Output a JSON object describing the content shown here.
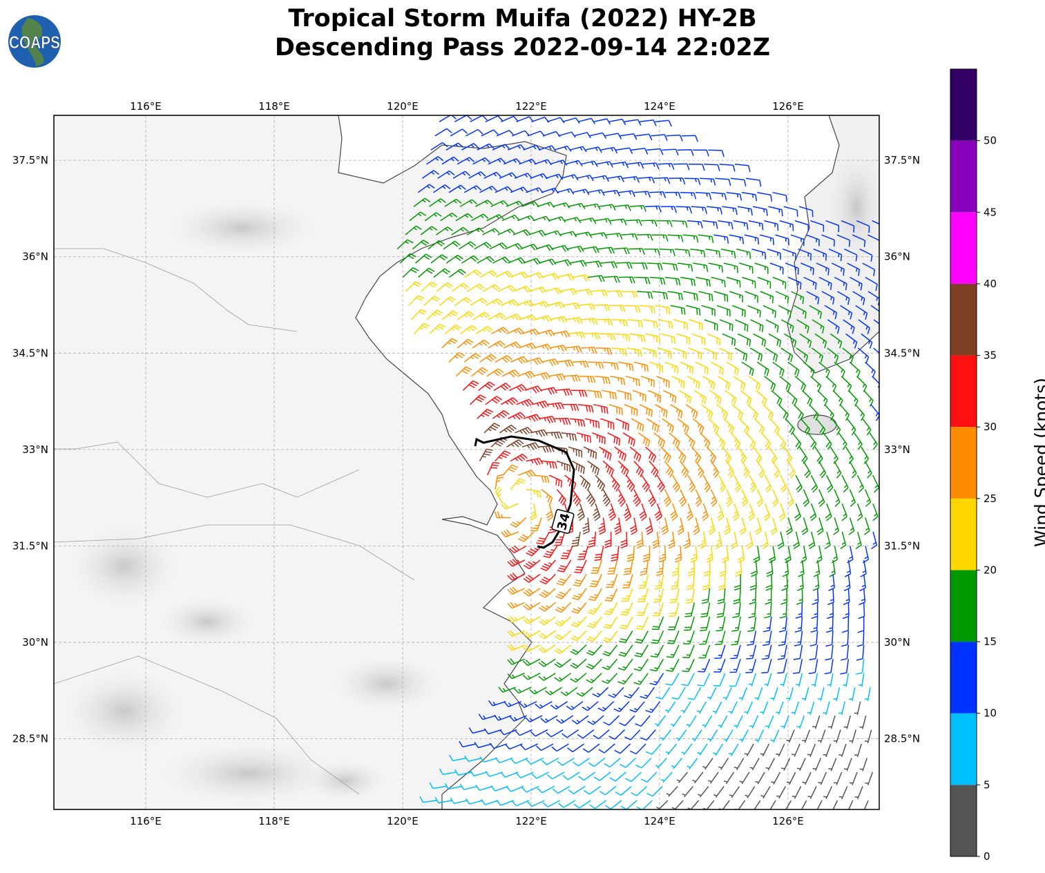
{
  "title": {
    "line1": "Tropical Storm Muifa (2022) HY-2B",
    "line2": "Descending Pass 2022-09-14 22:02Z"
  },
  "logo": {
    "text": "COAPS"
  },
  "map": {
    "extent_lon": [
      114.57,
      127.42
    ],
    "extent_lat": [
      27.4,
      38.2
    ],
    "lon_ticks": [
      "116°E",
      "118°E",
      "120°E",
      "122°E",
      "124°E",
      "126°E"
    ],
    "lon_tick_values": [
      116,
      118,
      120,
      122,
      124,
      126
    ],
    "lat_ticks": [
      "37.5°N",
      "36°N",
      "34.5°N",
      "33°N",
      "31.5°N",
      "30°N",
      "28.5°N"
    ],
    "lat_tick_values": [
      37.5,
      36,
      34.5,
      33,
      31.5,
      30,
      28.5
    ],
    "gridlines": true,
    "wind_radius_contour_label": "34",
    "storm_center": {
      "lon": 121.8,
      "lat": 32.2
    }
  },
  "colorbar": {
    "label": "Wind Speed (knots)",
    "ticks": [
      "0",
      "5",
      "10",
      "15",
      "20",
      "25",
      "30",
      "35",
      "40",
      "45",
      "50"
    ],
    "bounds": [
      0,
      5,
      10,
      15,
      20,
      25,
      30,
      35,
      40,
      45,
      50,
      55
    ],
    "colors": [
      "#555555",
      "#00bfff",
      "#0033ff",
      "#009900",
      "#ffd700",
      "#ff8c00",
      "#ff1010",
      "#7f3f26",
      "#ff00ff",
      "#8800bb",
      "#330066"
    ]
  }
}
